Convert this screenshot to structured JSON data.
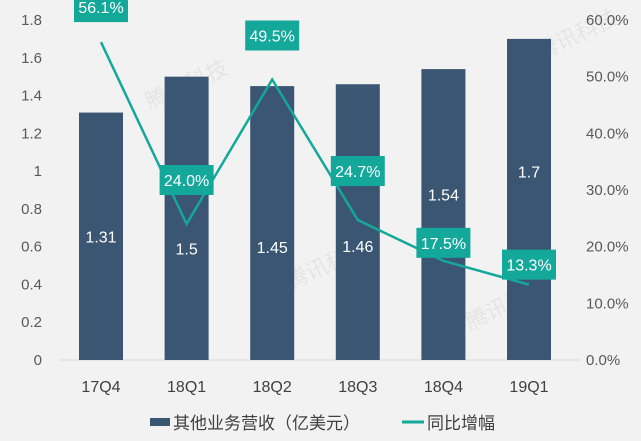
{
  "chart_data": {
    "type": "bar+line",
    "categories": [
      "17Q4",
      "18Q1",
      "18Q2",
      "18Q3",
      "18Q4",
      "19Q1"
    ],
    "series": [
      {
        "name": "其他业务营收（亿美元）",
        "type": "bar",
        "axis": "left",
        "values": [
          1.31,
          1.5,
          1.45,
          1.46,
          1.54,
          1.7
        ],
        "labels": [
          "1.31",
          "1.5",
          "1.45",
          "1.46",
          "1.54",
          "1.7"
        ],
        "color": "#3a5673"
      },
      {
        "name": "同比增幅",
        "type": "line",
        "axis": "right",
        "values": [
          56.1,
          24.0,
          49.5,
          24.7,
          17.5,
          13.3
        ],
        "labels": [
          "56.1%",
          "24.0%",
          "49.5%",
          "24.7%",
          "17.5%",
          "13.3%"
        ],
        "color": "#14a89a"
      }
    ],
    "left_axis": {
      "ylim": [
        0,
        1.8
      ],
      "ticks": [
        "0",
        "0.2",
        "0.4",
        "0.6",
        "0.8",
        "1",
        "1.2",
        "1.4",
        "1.6",
        "1.8"
      ]
    },
    "right_axis": {
      "ylim": [
        0,
        60
      ],
      "ticks": [
        "0.0%",
        "10.0%",
        "20.0%",
        "30.0%",
        "40.0%",
        "50.0%",
        "60.0%"
      ]
    },
    "grid": false,
    "legend": "bottom",
    "watermark": "腾讯科技"
  }
}
